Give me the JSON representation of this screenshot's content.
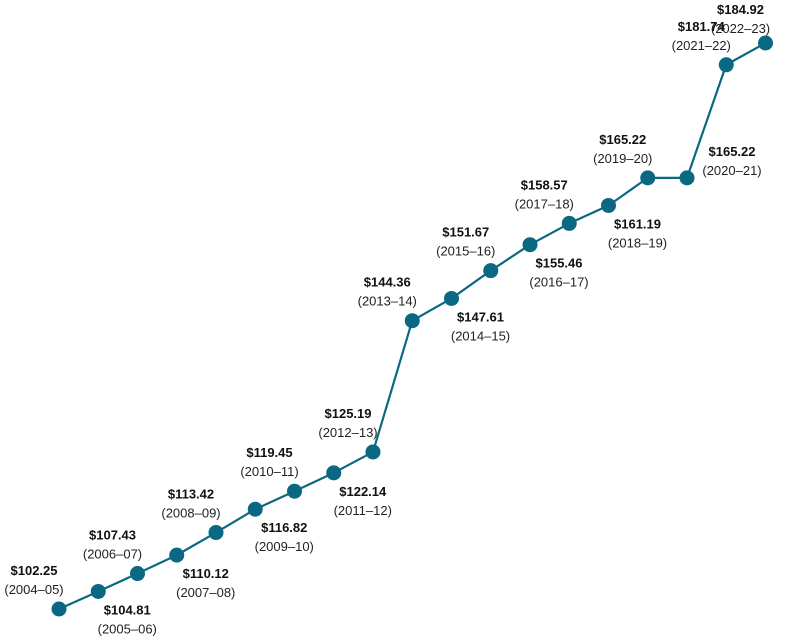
{
  "chart_data": {
    "type": "line",
    "title": "",
    "xlabel": "",
    "ylabel": "",
    "color": "#0b6882",
    "points": [
      {
        "period": "(2004–05)",
        "value": 102.25,
        "label": "$102.25",
        "label_pos": "above"
      },
      {
        "period": "(2005–06)",
        "value": 104.81,
        "label": "$104.81",
        "label_pos": "below"
      },
      {
        "period": "(2006–07)",
        "value": 107.43,
        "label": "$107.43",
        "label_pos": "above"
      },
      {
        "period": "(2007–08)",
        "value": 110.12,
        "label": "$110.12",
        "label_pos": "below"
      },
      {
        "period": "(2008–09)",
        "value": 113.42,
        "label": "$113.42",
        "label_pos": "above"
      },
      {
        "period": "(2009–10)",
        "value": 116.82,
        "label": "$116.82",
        "label_pos": "below"
      },
      {
        "period": "(2010–11)",
        "value": 119.45,
        "label": "$119.45",
        "label_pos": "above"
      },
      {
        "period": "(2011–12)",
        "value": 122.14,
        "label": "$122.14",
        "label_pos": "below"
      },
      {
        "period": "(2012–13)",
        "value": 125.19,
        "label": "$125.19",
        "label_pos": "above"
      },
      {
        "period": "(2013–14)",
        "value": 144.36,
        "label": "$144.36",
        "label_pos": "above"
      },
      {
        "period": "(2014–15)",
        "value": 147.61,
        "label": "$147.61",
        "label_pos": "below"
      },
      {
        "period": "(2015–16)",
        "value": 151.67,
        "label": "$151.67",
        "label_pos": "above"
      },
      {
        "period": "(2016–17)",
        "value": 155.46,
        "label": "$155.46",
        "label_pos": "below"
      },
      {
        "period": "(2017–18)",
        "value": 158.57,
        "label": "$158.57",
        "label_pos": "above"
      },
      {
        "period": "(2018–19)",
        "value": 161.19,
        "label": "$161.19",
        "label_pos": "below"
      },
      {
        "period": "(2019–20)",
        "value": 165.22,
        "label": "$165.22",
        "label_pos": "above"
      },
      {
        "period": "(2020–21)",
        "value": 165.22,
        "label": "$165.22",
        "label_pos": "right"
      },
      {
        "period": "(2021–22)",
        "value": 181.74,
        "label": "$181.74",
        "label_pos": "above"
      },
      {
        "period": "(2022–23)",
        "value": 184.92,
        "label": "$184.92",
        "label_pos": "above"
      }
    ]
  }
}
